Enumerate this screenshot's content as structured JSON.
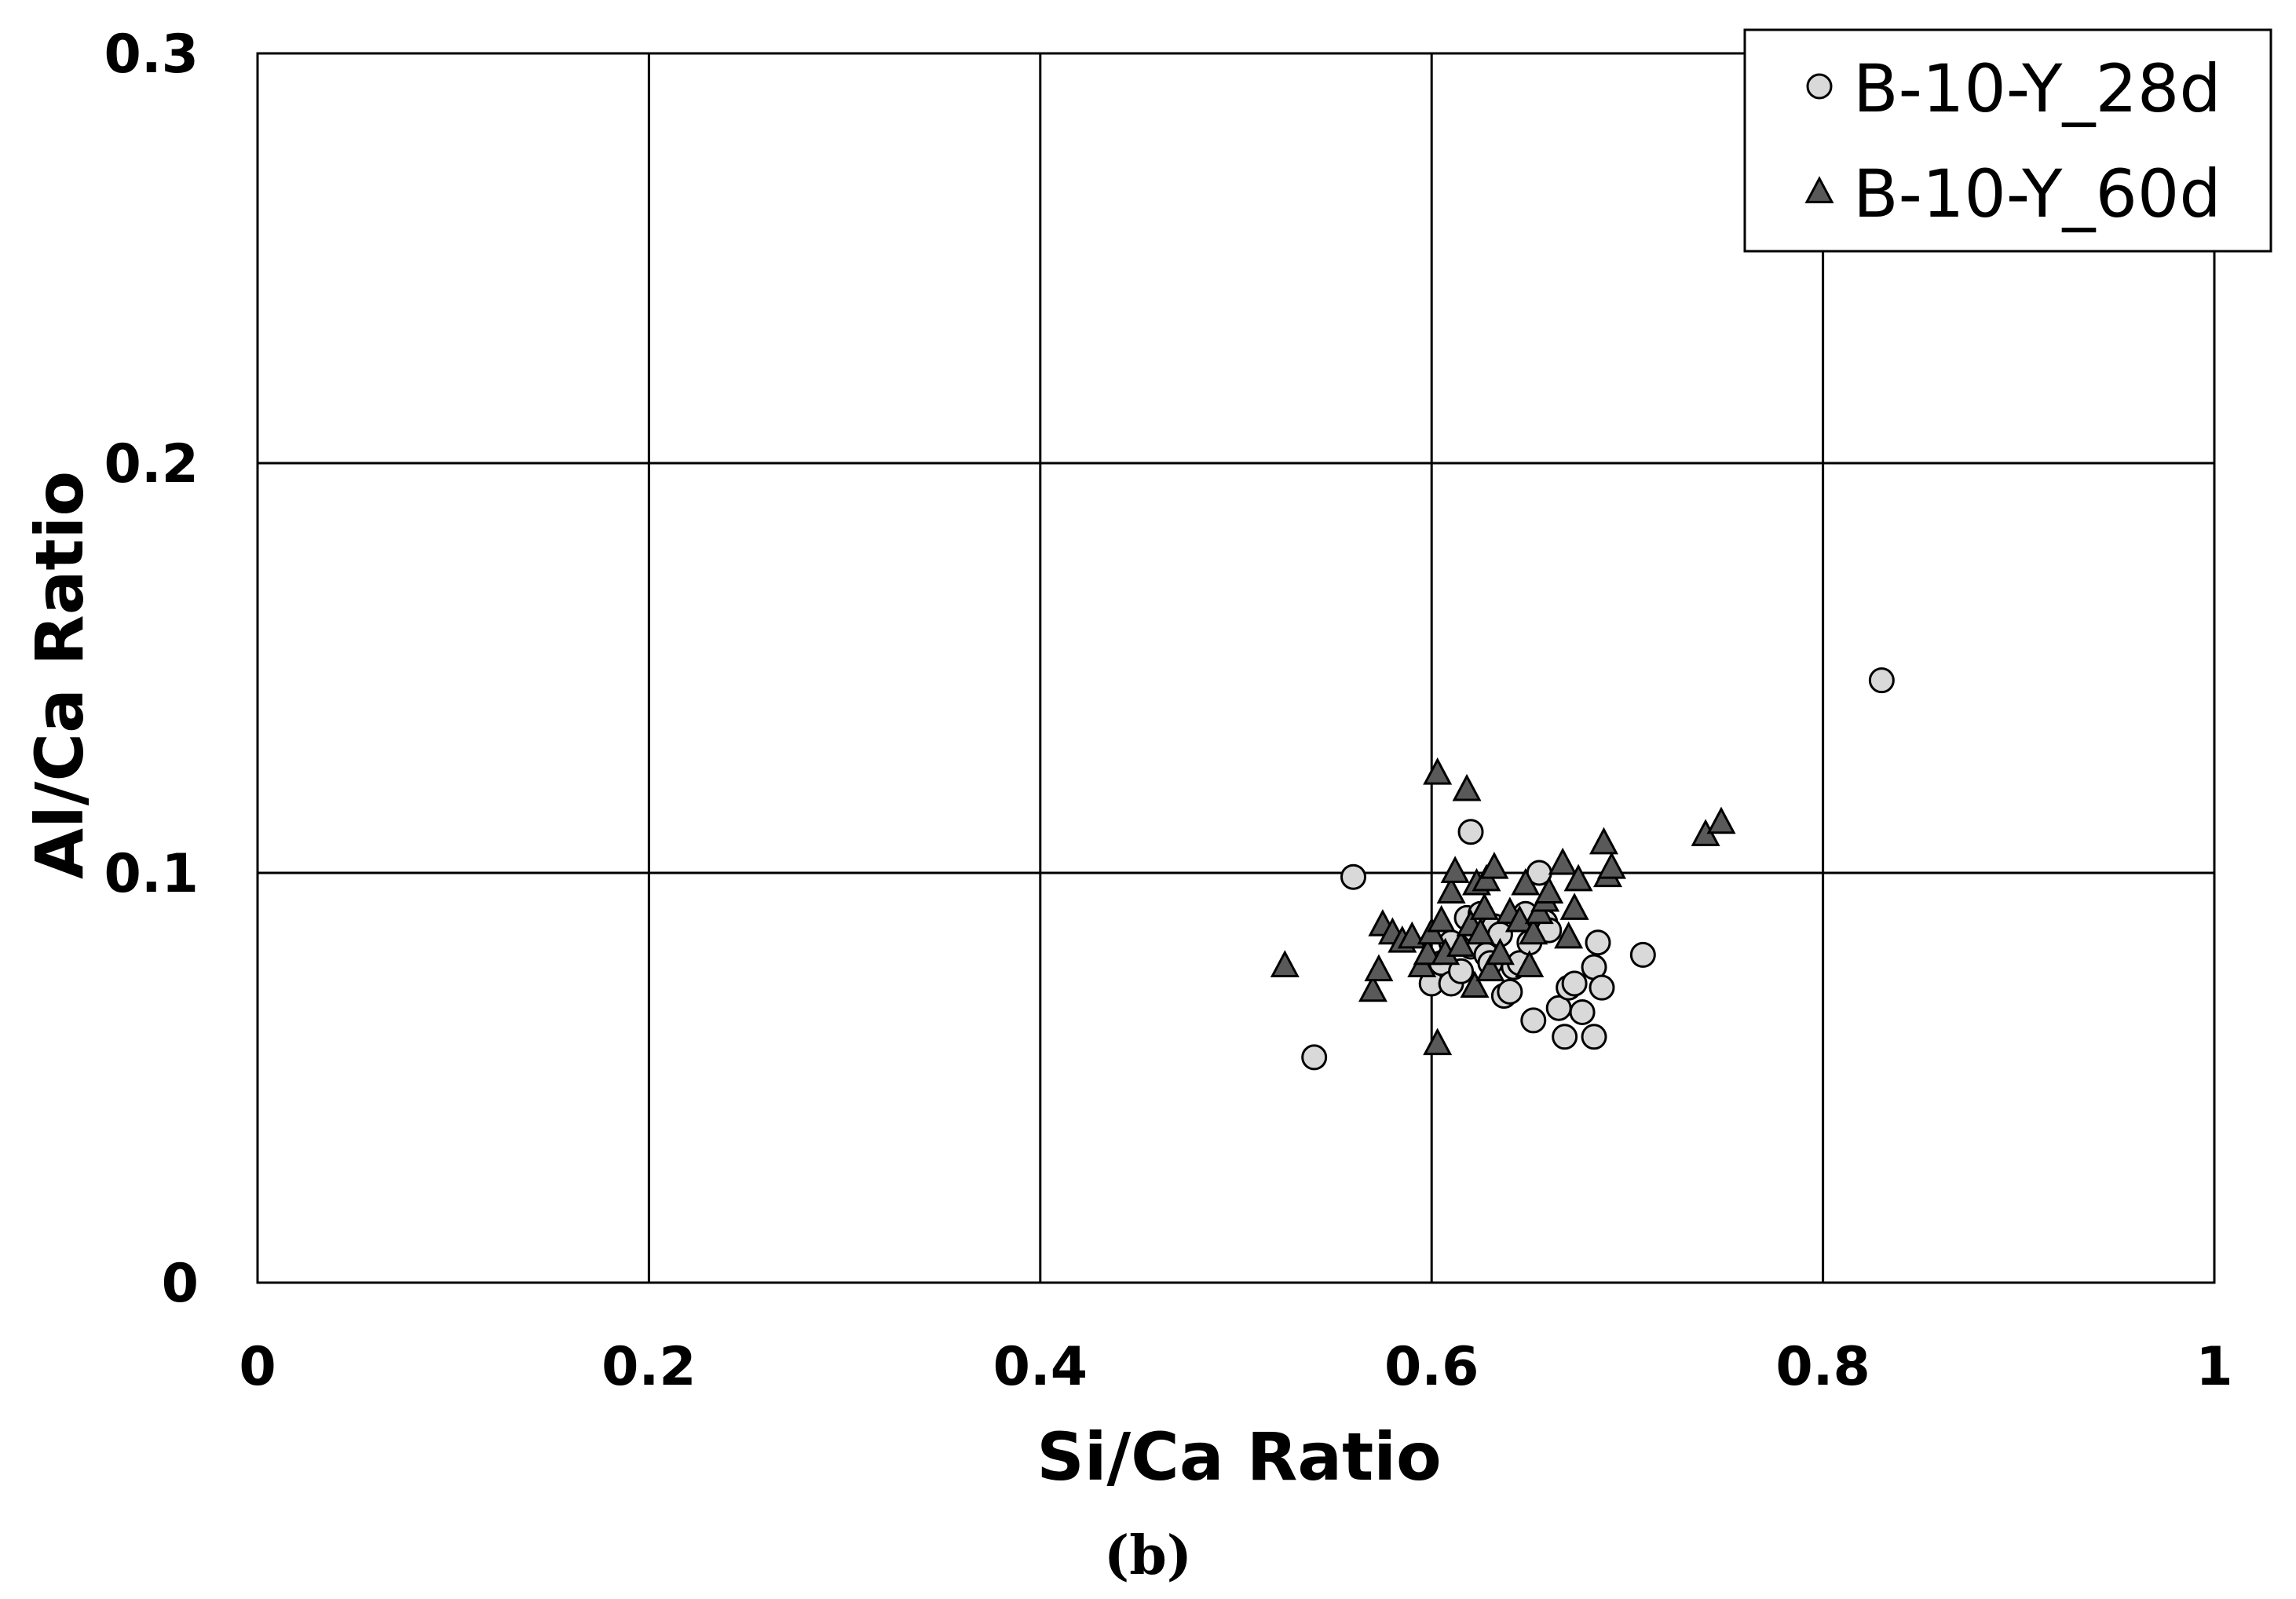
{
  "chart_data": {
    "type": "scatter",
    "xlabel": "Si/Ca Ratio",
    "ylabel": "Al/Ca Ratio",
    "xlim": [
      0,
      1
    ],
    "ylim": [
      0,
      0.3
    ],
    "xticks": [
      "0",
      "0.2",
      "0.4",
      "0.6",
      "0.8",
      "1"
    ],
    "yticks": [
      "0",
      "0.1",
      "0.2",
      "0.3"
    ],
    "grid": true,
    "legend_position": "top-right",
    "caption": "(b)",
    "series": [
      {
        "name": "B-10-Y_28d",
        "marker": "circle",
        "color": "#d9d9d9",
        "points": [
          [
            0.54,
            0.055
          ],
          [
            0.56,
            0.099
          ],
          [
            0.6,
            0.073
          ],
          [
            0.605,
            0.078
          ],
          [
            0.61,
            0.073
          ],
          [
            0.61,
            0.083
          ],
          [
            0.615,
            0.076
          ],
          [
            0.618,
            0.089
          ],
          [
            0.62,
            0.11
          ],
          [
            0.62,
            0.082
          ],
          [
            0.622,
            0.086
          ],
          [
            0.625,
            0.09
          ],
          [
            0.628,
            0.08
          ],
          [
            0.63,
            0.078
          ],
          [
            0.632,
            0.087
          ],
          [
            0.635,
            0.085
          ],
          [
            0.637,
            0.07
          ],
          [
            0.64,
            0.071
          ],
          [
            0.642,
            0.077
          ],
          [
            0.645,
            0.078
          ],
          [
            0.648,
            0.09
          ],
          [
            0.65,
            0.083
          ],
          [
            0.652,
            0.064
          ],
          [
            0.655,
            0.1
          ],
          [
            0.658,
            0.088
          ],
          [
            0.66,
            0.086
          ],
          [
            0.665,
            0.067
          ],
          [
            0.668,
            0.06
          ],
          [
            0.67,
            0.072
          ],
          [
            0.673,
            0.073
          ],
          [
            0.677,
            0.066
          ],
          [
            0.683,
            0.06
          ],
          [
            0.683,
            0.077
          ],
          [
            0.685,
            0.083
          ],
          [
            0.687,
            0.072
          ],
          [
            0.708,
            0.08
          ],
          [
            0.83,
            0.147
          ]
        ]
      },
      {
        "name": "B-10-Y_60d",
        "marker": "triangle",
        "color": "#595959",
        "points": [
          [
            0.525,
            0.077
          ],
          [
            0.57,
            0.071
          ],
          [
            0.573,
            0.076
          ],
          [
            0.575,
            0.087
          ],
          [
            0.58,
            0.085
          ],
          [
            0.585,
            0.083
          ],
          [
            0.59,
            0.084
          ],
          [
            0.595,
            0.077
          ],
          [
            0.598,
            0.08
          ],
          [
            0.6,
            0.085
          ],
          [
            0.603,
            0.124
          ],
          [
            0.603,
            0.058
          ],
          [
            0.605,
            0.088
          ],
          [
            0.607,
            0.08
          ],
          [
            0.61,
            0.095
          ],
          [
            0.612,
            0.1
          ],
          [
            0.615,
            0.082
          ],
          [
            0.618,
            0.12
          ],
          [
            0.62,
            0.087
          ],
          [
            0.622,
            0.072
          ],
          [
            0.623,
            0.097
          ],
          [
            0.625,
            0.085
          ],
          [
            0.627,
            0.091
          ],
          [
            0.628,
            0.098
          ],
          [
            0.63,
            0.076
          ],
          [
            0.632,
            0.101
          ],
          [
            0.635,
            0.08
          ],
          [
            0.64,
            0.09
          ],
          [
            0.645,
            0.088
          ],
          [
            0.648,
            0.097
          ],
          [
            0.65,
            0.077
          ],
          [
            0.652,
            0.085
          ],
          [
            0.655,
            0.09
          ],
          [
            0.658,
            0.093
          ],
          [
            0.66,
            0.095
          ],
          [
            0.667,
            0.102
          ],
          [
            0.67,
            0.084
          ],
          [
            0.673,
            0.091
          ],
          [
            0.675,
            0.098
          ],
          [
            0.688,
            0.107
          ],
          [
            0.69,
            0.099
          ],
          [
            0.692,
            0.101
          ],
          [
            0.74,
            0.109
          ],
          [
            0.748,
            0.112
          ]
        ]
      }
    ]
  }
}
